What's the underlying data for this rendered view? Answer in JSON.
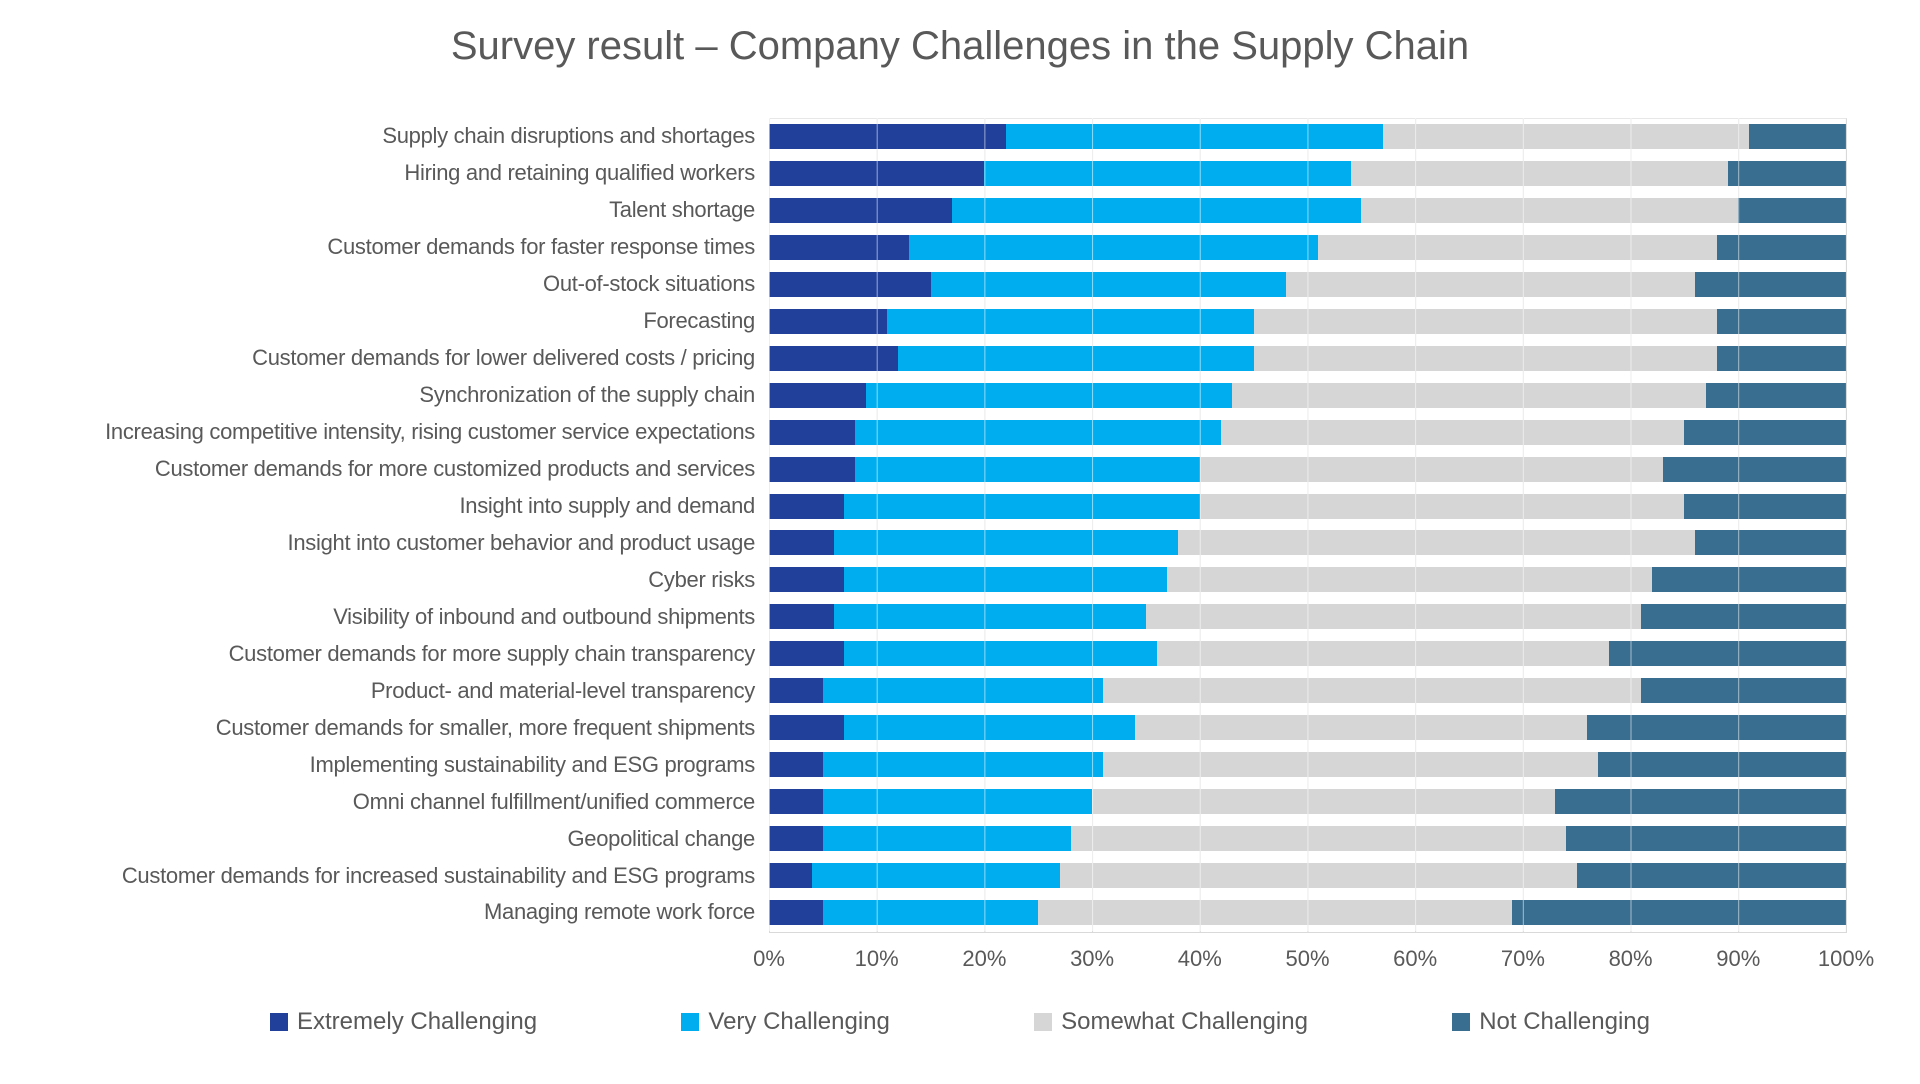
{
  "title": "Survey result – Company Challenges in the Supply Chain",
  "x_axis": {
    "ticks": [
      "0%",
      "10%",
      "20%",
      "30%",
      "40%",
      "50%",
      "60%",
      "70%",
      "80%",
      "90%",
      "100%"
    ]
  },
  "colors": {
    "extremely_challenging": "#21409A",
    "very_challenging": "#00AEEF",
    "somewhat_challenging": "#D6D6D6",
    "not_challenging": "#3A6E91",
    "text": "#595959",
    "gridline": "#D9D9D9",
    "background": "#FFFFFF"
  },
  "chart_data": {
    "type": "bar",
    "orientation": "horizontal",
    "stacked": true,
    "unit": "percent",
    "xlim": [
      0,
      100
    ],
    "grid": true,
    "legend_position": "bottom",
    "categories": [
      "Supply chain disruptions and shortages",
      "Hiring and retaining qualified workers",
      "Talent shortage",
      "Customer demands for faster response times",
      "Out-of-stock situations",
      "Forecasting",
      "Customer demands for lower delivered costs / pricing",
      "Synchronization of the supply chain",
      "Increasing competitive intensity, rising customer service expectations",
      "Customer demands for more customized products and services",
      "Insight into supply and demand",
      "Insight into customer behavior and product usage",
      "Cyber risks",
      "Visibility of inbound and outbound shipments",
      "Customer demands for more supply chain transparency",
      "Product- and material-level transparency",
      "Customer demands for smaller, more frequent shipments",
      "Implementing sustainability and ESG programs",
      "Omni channel fulfillment/unified commerce",
      "Geopolitical change",
      "Customer demands for increased sustainability and ESG programs",
      "Managing remote work force"
    ],
    "series": [
      {
        "name": "Extremely Challenging",
        "color": "#21409A",
        "values": [
          22,
          20,
          17,
          13,
          15,
          11,
          12,
          9,
          8,
          8,
          7,
          6,
          7,
          6,
          7,
          5,
          7,
          5,
          5,
          5,
          4,
          5
        ]
      },
      {
        "name": "Very Challenging",
        "color": "#00AEEF",
        "values": [
          35,
          34,
          38,
          38,
          33,
          34,
          33,
          34,
          34,
          32,
          33,
          32,
          30,
          29,
          29,
          26,
          27,
          26,
          25,
          23,
          23,
          20
        ]
      },
      {
        "name": "Somewhat Challenging",
        "color": "#D6D6D6",
        "values": [
          34,
          35,
          35,
          37,
          38,
          43,
          43,
          44,
          43,
          43,
          45,
          48,
          45,
          46,
          42,
          50,
          42,
          46,
          43,
          46,
          48,
          44
        ]
      },
      {
        "name": "Not Challenging",
        "color": "#3A6E91",
        "values": [
          9,
          11,
          10,
          12,
          14,
          12,
          12,
          13,
          15,
          17,
          15,
          14,
          18,
          19,
          22,
          19,
          24,
          23,
          27,
          26,
          25,
          31
        ]
      }
    ]
  }
}
